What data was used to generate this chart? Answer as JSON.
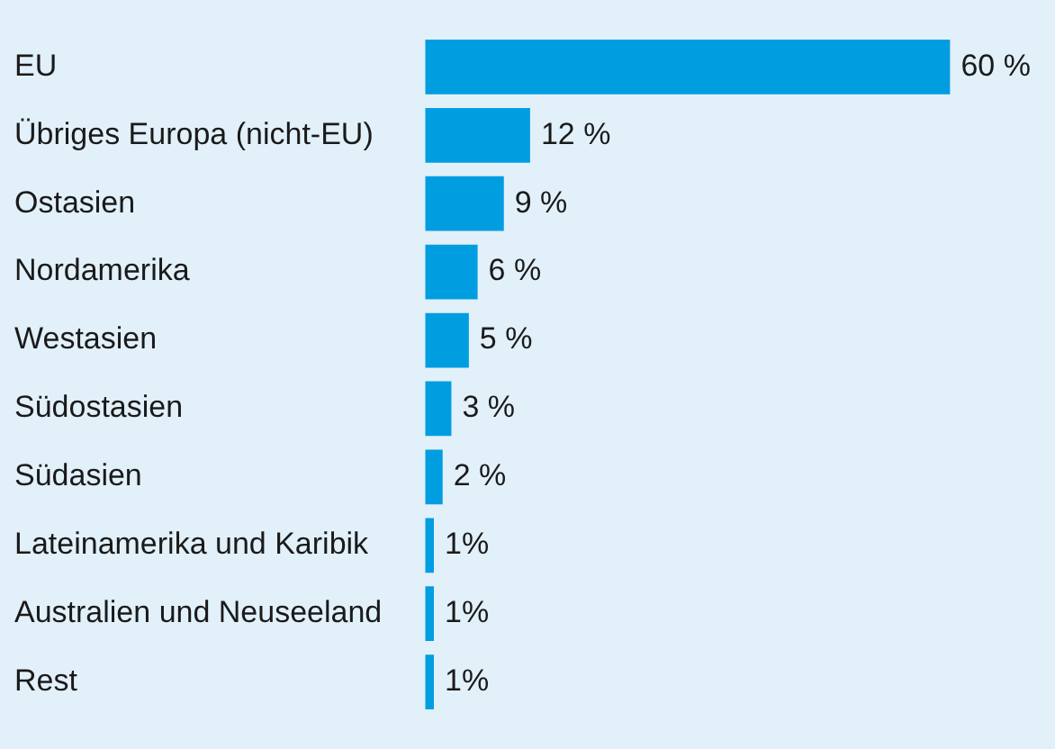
{
  "chart_data": {
    "type": "bar",
    "orientation": "horizontal",
    "categories": [
      "EU",
      "Übriges Europa (nicht-EU)",
      "Ostasien",
      "Nordamerika",
      "Westasien",
      "Südostasien",
      "Südasien",
      "Lateinamerika und Karibik",
      "Australien und Neuseeland",
      "Rest"
    ],
    "values": [
      60,
      12,
      9,
      6,
      5,
      3,
      2,
      1,
      1,
      1
    ],
    "value_labels": [
      "60 %",
      "12 %",
      "9 %",
      "6 %",
      "5 %",
      "3 %",
      "2 %",
      "1%",
      "1%",
      "1%"
    ],
    "color": "#009ee0",
    "grid": false,
    "legend": false
  }
}
